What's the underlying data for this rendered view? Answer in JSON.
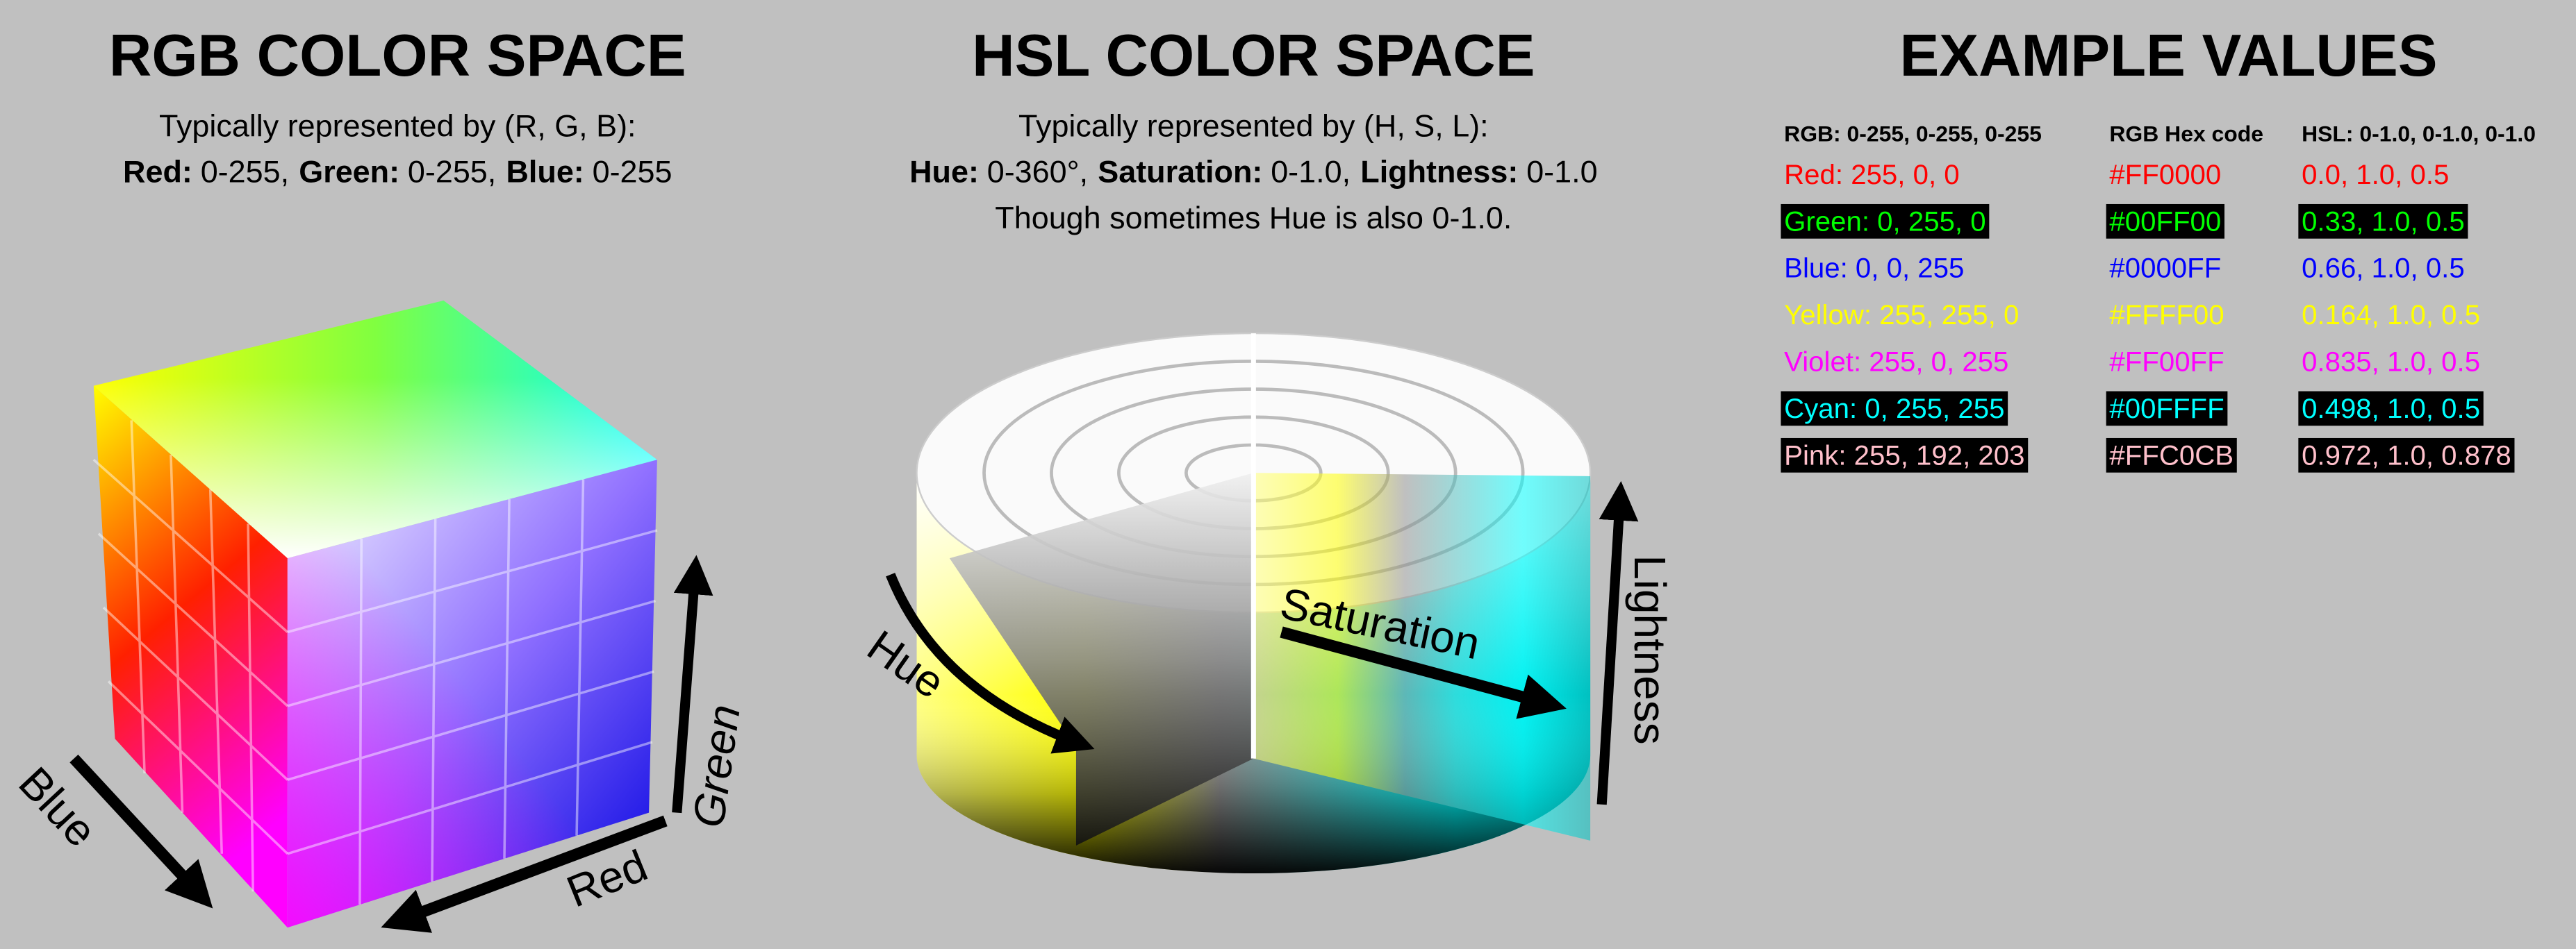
{
  "rgb": {
    "title": "RGB COLOR SPACE",
    "line1": "Typically represented by (R, G, B):",
    "parts": [
      {
        "term": "Red:",
        "value": "0-255,"
      },
      {
        "term": "Green:",
        "value": "0-255,"
      },
      {
        "term": "Blue:",
        "value": "0-255"
      }
    ],
    "axes": {
      "blue": "Blue",
      "red": "Red",
      "green": "Green"
    }
  },
  "hsl": {
    "title": "HSL COLOR SPACE",
    "line1": "Typically represented by (H, S, L):",
    "parts": [
      {
        "term": "Hue:",
        "value": "0-360°,"
      },
      {
        "term": "Saturation:",
        "value": "0-1.0,"
      },
      {
        "term": "Lightness:",
        "value": "0-1.0"
      }
    ],
    "line3": "Though sometimes Hue is also 0-1.0.",
    "axes": {
      "hue": "Hue",
      "saturation": "Saturation",
      "lightness": "Lightness"
    }
  },
  "examples": {
    "title": "EXAMPLE VALUES",
    "headers": [
      "RGB: 0-255, 0-255, 0-255",
      "RGB Hex code",
      "HSL: 0-1.0, 0-1.0, 0-1.0"
    ],
    "rows": [
      {
        "cells": [
          "Red: 255, 0, 0",
          "#FF0000",
          "0.0, 1.0, 0.5"
        ],
        "color": "#ff0000",
        "highlight": false
      },
      {
        "cells": [
          "Green: 0, 255, 0",
          "#00FF00",
          "0.33, 1.0, 0.5"
        ],
        "color": "#00ff00",
        "highlight": true
      },
      {
        "cells": [
          "Blue: 0, 0, 255",
          "#0000FF",
          "0.66, 1.0, 0.5"
        ],
        "color": "#0000ff",
        "highlight": false
      },
      {
        "cells": [
          "Yellow: 255, 255, 0",
          "#FFFF00",
          "0.164, 1.0, 0.5"
        ],
        "color": "#ffff00",
        "highlight": false
      },
      {
        "cells": [
          "Violet: 255, 0, 255",
          "#FF00FF",
          "0.835, 1.0, 0.5"
        ],
        "color": "#ff00ff",
        "highlight": false
      },
      {
        "cells": [
          "Cyan: 0, 255, 255",
          "#00FFFF",
          "0.498, 1.0, 0.5"
        ],
        "color": "#00ffff",
        "highlight": true
      },
      {
        "cells": [
          "Pink: 255, 192, 203",
          "#FFC0CB",
          "0.972, 1.0, 0.878"
        ],
        "color": "#ffc0cb",
        "highlight": true
      }
    ]
  }
}
